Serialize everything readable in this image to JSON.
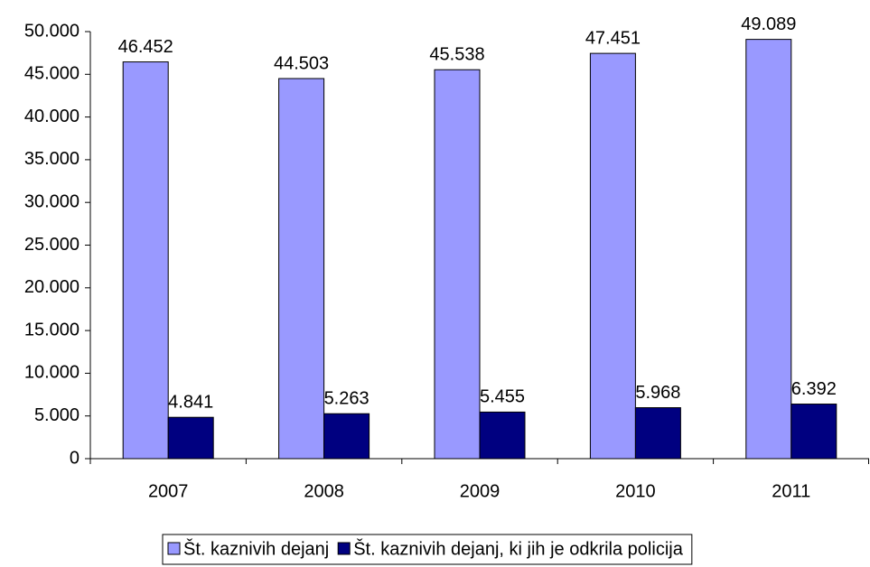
{
  "chart_data": {
    "type": "bar",
    "categories": [
      "2007",
      "2008",
      "2009",
      "2010",
      "2011"
    ],
    "series": [
      {
        "name": "Št. kaznivih dejanj",
        "color": "#9999ff",
        "values": [
          46452,
          44503,
          45538,
          47451,
          49089
        ],
        "value_labels": [
          "46.452",
          "44.503",
          "45.538",
          "47.451",
          "49.089"
        ]
      },
      {
        "name": "Št. kaznivih dejanj, ki jih je odkrila policija",
        "color": "#000080",
        "values": [
          4841,
          5263,
          5455,
          5968,
          6392
        ],
        "value_labels": [
          "4.841",
          "5.263",
          "5.455",
          "5.968",
          "6.392"
        ]
      }
    ],
    "ylim": [
      0,
      50000
    ],
    "yticks": [
      0,
      {
        "value": 5000,
        "label": "5.000"
      },
      {
        "value": 10000,
        "label": "10.000"
      },
      {
        "value": 15000,
        "label": "15.000"
      },
      {
        "value": 20000,
        "label": "20.000"
      },
      {
        "value": 25000,
        "label": "25.000"
      },
      {
        "value": 30000,
        "label": "30.000"
      },
      {
        "value": 35000,
        "label": "35.000"
      },
      {
        "value": 40000,
        "label": "40.000"
      },
      {
        "value": 45000,
        "label": "45.000"
      },
      {
        "value": 50000,
        "label": "50.000"
      }
    ],
    "grid": false,
    "legend": "bottom"
  }
}
